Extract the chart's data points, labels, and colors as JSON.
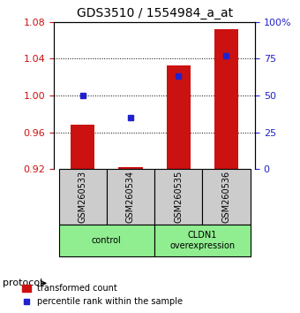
{
  "title": "GDS3510 / 1554984_a_at",
  "samples": [
    "GSM260533",
    "GSM260534",
    "GSM260535",
    "GSM260536"
  ],
  "red_values": [
    0.968,
    0.922,
    1.033,
    1.072
  ],
  "blue_values": [
    50,
    35,
    63,
    77
  ],
  "red_baseline": 0.92,
  "ylim_left": [
    0.92,
    1.08
  ],
  "ylim_right": [
    0,
    100
  ],
  "yticks_left": [
    0.92,
    0.96,
    1.0,
    1.04,
    1.08
  ],
  "yticks_right": [
    0,
    25,
    50,
    75,
    100
  ],
  "ytick_labels_right": [
    "0",
    "25",
    "50",
    "75",
    "100%"
  ],
  "groups": [
    {
      "label": "control",
      "samples": [
        0,
        1
      ],
      "color": "#90EE90"
    },
    {
      "label": "CLDN1\noverexpression",
      "samples": [
        2,
        3
      ],
      "color": "#90EE90"
    }
  ],
  "red_color": "#CC1111",
  "blue_color": "#2222CC",
  "bar_width": 0.5,
  "grid_color": "#000000",
  "bg_color": "#ffffff",
  "panel_bg": "#cccccc",
  "legend_red_label": "transformed count",
  "legend_blue_label": "percentile rank within the sample",
  "protocol_label": "protocol"
}
